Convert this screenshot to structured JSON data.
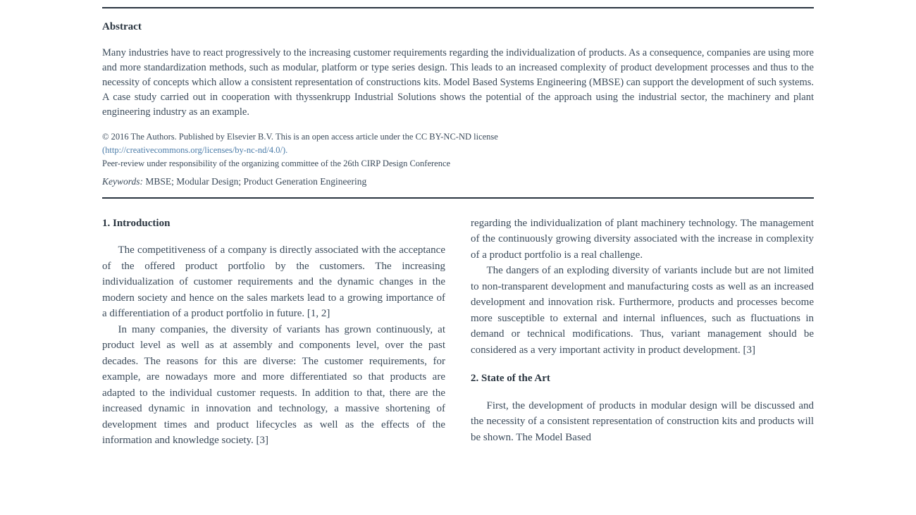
{
  "abstract": {
    "heading": "Abstract",
    "body": "Many industries have to react progressively to the increasing customer requirements regarding the individualization of products. As a consequence, companies are using more and more standardization methods, such as modular, platform or type series design. This leads to an increased complexity of product development processes and thus to the necessity of concepts which allow a consistent representation of constructions kits. Model Based Systems Engineering (MBSE) can support the development of such systems. A case study carried out in cooperation with thyssenkrupp Industrial Solutions shows the potential of the approach using the industrial sector, the machinery and plant engineering industry as an example.",
    "copyright_prefix": "© 2016 The Authors. Published by Elsevier B.V. This is an open access article under the CC BY-NC-ND license",
    "license_link": "(http://creativecommons.org/licenses/by-nc-nd/4.0/).",
    "peer_review": "Peer-review under responsibility of the organizing committee of the 26th CIRP Design Conference",
    "keywords_label": "Keywords:",
    "keywords": " MBSE; Modular Design; Product Generation Engineering"
  },
  "section1": {
    "heading": "1. Introduction",
    "para1": "The competitiveness of a company is directly associated with the acceptance of the offered product portfolio by the customers. The increasing individualization of customer requirements and the dynamic changes in the modern society and hence on the sales markets lead to a growing importance of a differentiation of a product portfolio in future. [1, 2]",
    "para2": "In many companies, the diversity of variants has grown continuously, at product level as well as at assembly and components level, over the past decades. The reasons for this are diverse: The customer requirements, for example, are nowadays more and more differentiated so that products are adapted to the individual customer requests. In addition to that, there are the increased dynamic in innovation and technology, a massive shortening of development times and product lifecycles as well as the effects of the information and knowledge society. [3]"
  },
  "col2": {
    "para1": "regarding the individualization of plant machinery technology. The management of the continuously growing diversity associated with the increase in complexity of a product portfolio is a real challenge.",
    "para2": "The dangers of an exploding diversity of variants include but are not limited to non-transparent development and manufacturing costs as well as an increased development and innovation risk. Furthermore, products and processes become more susceptible to external and internal influences, such as fluctuations in demand or technical modifications. Thus, variant management should be considered as a very important activity in product development. [3]"
  },
  "section2": {
    "heading": "2. State of the Art",
    "para1": "First, the development of products in modular design will be discussed and the necessity of a consistent representation of construction kits and products will be shown. The Model Based"
  },
  "style": {
    "text_color": "#3a4a5a",
    "heading_color": "#2a3540",
    "link_color": "#4a7ba8",
    "border_color": "#2a3540",
    "background": "#ffffff",
    "body_fontsize": 15,
    "abstract_fontsize": 14.5,
    "small_fontsize": 12.5
  }
}
